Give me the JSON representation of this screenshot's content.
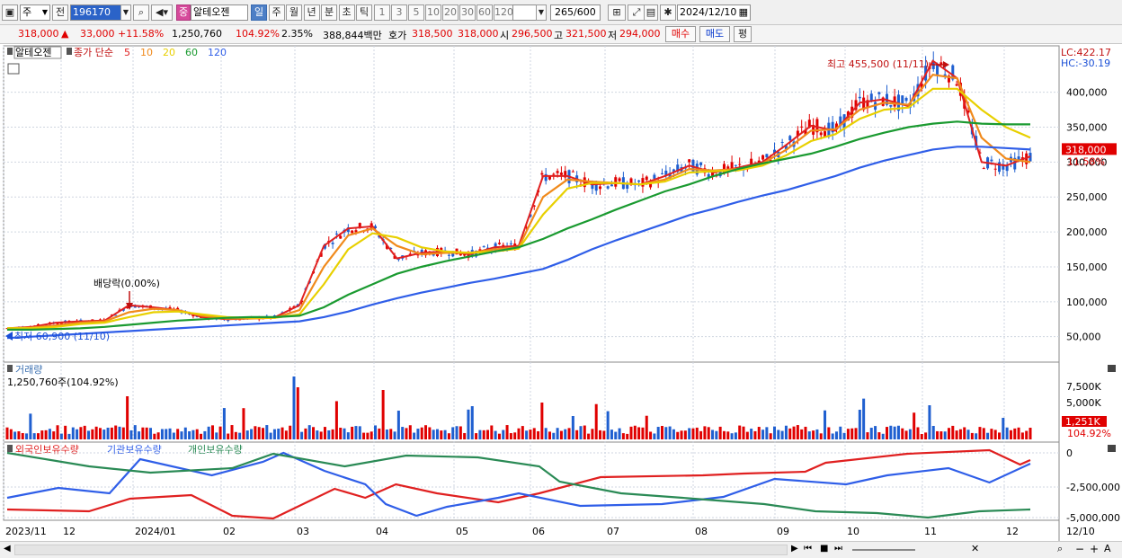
{
  "toolbar1": {
    "period_label": "주",
    "prev_label": "전",
    "stock_code": "196170",
    "stock_badge": "중",
    "stock_name": "알테오젠",
    "tabs": [
      "일",
      "주",
      "월",
      "년",
      "분",
      "초",
      "틱"
    ],
    "selected_tab": "일",
    "intervals": [
      "1",
      "3",
      "5",
      "10",
      "20",
      "30",
      "60",
      "120"
    ],
    "count_value": "265",
    "count_total": "/600",
    "date": "2024/12/10"
  },
  "toolbar2": {
    "price": "318,000",
    "change_arrow": "▲",
    "change": "33,000",
    "change_pct": "+11.58%",
    "volume": "1,250,760",
    "volume_ratio": "104.92%",
    "turnover": "2.35%",
    "trade_value": "388,844백만",
    "quote_label": "호가",
    "quote_ask": "318,500",
    "quote_bid": "318,000",
    "open_label": "시",
    "open": "296,500",
    "high_label": "고",
    "high": "321,500",
    "low_label": "저",
    "low": "294,000",
    "buy_label": "매수",
    "sell_label": "매도",
    "avg_label": "평"
  },
  "legend": {
    "name": "알테오젠",
    "ma_label": "종가 단순",
    "ma_periods": [
      {
        "label": "5",
        "color": "#e02020"
      },
      {
        "label": "10",
        "color": "#f08a1c"
      },
      {
        "label": "20",
        "color": "#e8d000"
      },
      {
        "label": "60",
        "color": "#1a9a30"
      },
      {
        "label": "120",
        "color": "#2f5ee8"
      }
    ]
  },
  "price_panel": {
    "lc": "LC:422.17",
    "hc": "HC:-30.19",
    "high_annotation": "최고 455,500 (11/11)",
    "low_annotation": "최저 60,900 (11/10)",
    "dividend_annotation": "배당락(0.00%)",
    "current_price": "318,000",
    "current_pct": "11.58%",
    "y_ticks": [
      "400,000",
      "350,000",
      "300,000",
      "250,000",
      "200,000",
      "150,000",
      "100,000",
      "50,000"
    ]
  },
  "volume_panel": {
    "title": "거래량",
    "value": "1,250,760주(104.92%)",
    "y_ticks": [
      "7,500K",
      "5,000K"
    ],
    "current": "1,251K",
    "current_pct": "104.92%"
  },
  "holding_panel": {
    "titles": [
      "외국인보유수량",
      "기관보유수량",
      "개인보유수량"
    ],
    "y_ticks": [
      "0",
      "-2,500,000",
      "-5,000,000"
    ]
  },
  "x_axis": {
    "labels": [
      "2023/11",
      "12",
      "2024/01",
      "02",
      "03",
      "04",
      "05",
      "06",
      "07",
      "08",
      "09",
      "10",
      "11",
      "12",
      "12/10"
    ]
  },
  "colors": {
    "up": "#e00000",
    "down": "#1f5fd0",
    "ma5": "#e02020",
    "ma10": "#f08a1c",
    "ma20": "#e8d000",
    "ma60": "#1a9a30",
    "ma120": "#2f5ee8",
    "foreign": "#e02020",
    "institution": "#2f5ee8",
    "individual": "#2a8a55"
  },
  "chart_data": {
    "type": "candlestick",
    "ma_series": [
      {
        "name": "5",
        "values": [
          62000,
          64000,
          70000,
          72000,
          73000,
          95000,
          92000,
          88000,
          78000,
          75000,
          76000,
          78000,
          95000,
          180000,
          205000,
          208000,
          162000,
          170000,
          172000,
          168000,
          178000,
          180000,
          280000,
          280000,
          268000,
          270000,
          268000,
          280000,
          295000,
          285000,
          292000,
          300000,
          325000,
          352000,
          345000,
          385000,
          390000,
          380000,
          445000,
          420000,
          300000,
          295000,
          308000
        ]
      },
      {
        "name": "10",
        "values": [
          62000,
          63000,
          66000,
          70000,
          72000,
          85000,
          90000,
          88000,
          80000,
          76000,
          76000,
          77000,
          88000,
          150000,
          195000,
          205000,
          180000,
          168000,
          170000,
          170000,
          175000,
          178000,
          250000,
          275000,
          272000,
          270000,
          268000,
          275000,
          290000,
          288000,
          290000,
          298000,
          318000,
          345000,
          347000,
          375000,
          385000,
          382000,
          425000,
          420000,
          335000,
          305000,
          300000
        ]
      },
      {
        "name": "20",
        "values": [
          62000,
          62000,
          64000,
          68000,
          70000,
          78000,
          85000,
          86000,
          82000,
          78000,
          77000,
          77000,
          82000,
          125000,
          175000,
          198000,
          192000,
          178000,
          172000,
          170000,
          172000,
          176000,
          225000,
          262000,
          270000,
          270000,
          268000,
          272000,
          285000,
          287000,
          288000,
          295000,
          310000,
          330000,
          340000,
          362000,
          375000,
          378000,
          405000,
          405000,
          375000,
          350000,
          335000
        ]
      },
      {
        "name": "60",
        "values": [
          60000,
          60000,
          61000,
          62000,
          64000,
          67000,
          70000,
          73000,
          75000,
          77000,
          78000,
          78000,
          80000,
          92000,
          110000,
          125000,
          140000,
          150000,
          158000,
          165000,
          172000,
          178000,
          190000,
          205000,
          218000,
          232000,
          245000,
          258000,
          268000,
          280000,
          290000,
          298000,
          305000,
          312000,
          322000,
          333000,
          342000,
          350000,
          355000,
          358000,
          355000,
          354000,
          354000
        ]
      },
      {
        "name": "120",
        "values": [
          48000,
          50000,
          52000,
          54000,
          56000,
          58000,
          60000,
          62000,
          64000,
          66000,
          68000,
          70000,
          72000,
          78000,
          86000,
          96000,
          105000,
          113000,
          120000,
          127000,
          133000,
          140000,
          147000,
          160000,
          175000,
          188000,
          200000,
          212000,
          224000,
          233000,
          243000,
          252000,
          260000,
          270000,
          280000,
          292000,
          302000,
          310000,
          318000,
          322000,
          322000,
          320000,
          318000
        ]
      }
    ],
    "high": 455500,
    "low": 60900,
    "ylim": [
      20000,
      460000
    ]
  }
}
